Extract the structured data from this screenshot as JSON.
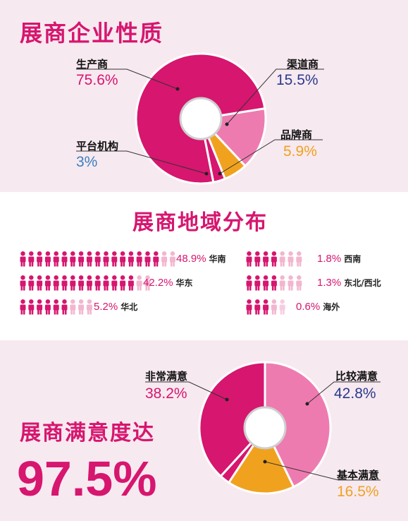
{
  "colors": {
    "magenta": "#d6166f",
    "pink": "#ee7bb0",
    "light_pink": "#f2b6cf",
    "orange": "#f0a21f",
    "navy": "#2a3a8c",
    "blue": "#3a7fc1"
  },
  "section1": {
    "title": "展商企业性质"
  },
  "section2": {
    "title": "展商地域分布"
  },
  "section3": {
    "title": "展商满意度达",
    "big_value": "97.5%"
  },
  "chart_data": [
    {
      "type": "pie",
      "title": "展商企业性质",
      "slices": [
        {
          "label": "生产商",
          "value": 75.6,
          "value_text": "75.6%",
          "color": "#d6166f"
        },
        {
          "label": "渠道商",
          "value": 15.5,
          "value_text": "15.5%",
          "color": "#ee7bb0"
        },
        {
          "label": "品牌商",
          "value": 5.9,
          "value_text": "5.9%",
          "color": "#f0a21f"
        },
        {
          "label": "平台机构",
          "value": 3,
          "value_text": "3%",
          "color": "#d6166f"
        }
      ]
    },
    {
      "type": "bar",
      "title": "展商地域分布",
      "regions": [
        {
          "name": "华南",
          "value": 48.9,
          "value_text": "48.9%"
        },
        {
          "name": "华东",
          "value": 42.2,
          "value_text": "42.2%"
        },
        {
          "name": "华北",
          "value": 5.2,
          "value_text": "5.2%"
        },
        {
          "name": "西南",
          "value": 1.8,
          "value_text": "1.8%"
        },
        {
          "name": "东北/西北",
          "value": 1.3,
          "value_text": "1.3%"
        },
        {
          "name": "海外",
          "value": 0.6,
          "value_text": "0.6%"
        }
      ]
    },
    {
      "type": "pie",
      "title": "展商满意度达",
      "slices": [
        {
          "label": "比较满意",
          "value": 42.8,
          "value_text": "42.8%",
          "color": "#ee7bb0"
        },
        {
          "label": "基本满意",
          "value": 16.5,
          "value_text": "16.5%",
          "color": "#f0a21f"
        },
        {
          "label": "",
          "value": 2.5,
          "color": "#d6166f"
        },
        {
          "label": "非常满意",
          "value": 38.2,
          "value_text": "38.2%",
          "color": "#d6166f"
        }
      ]
    }
  ]
}
